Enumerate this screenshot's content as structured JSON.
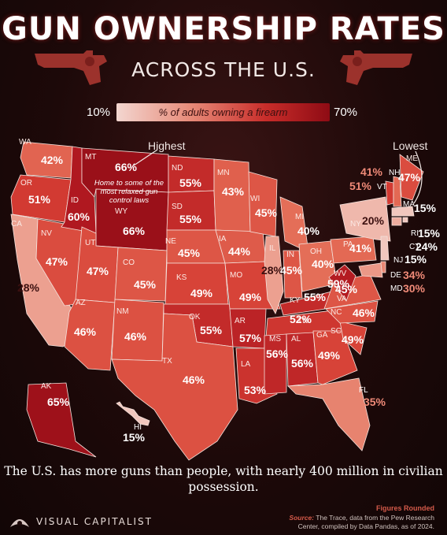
{
  "title": "GUN OWNERSHIP RATES",
  "subtitle": "ACROSS THE U.S.",
  "legend": {
    "min_label": "10%",
    "max_label": "70%",
    "label": "% of adults owning a firearm",
    "colors": [
      "#f3d6d0",
      "#e78a78",
      "#c82d2a",
      "#8e0b14"
    ]
  },
  "callouts": {
    "highest": "Highest",
    "lowest": "Lowest",
    "note": "Home to some of the most relaxed gun control laws"
  },
  "states": [
    {
      "abbr": "WA",
      "value": 42
    },
    {
      "abbr": "OR",
      "value": 51
    },
    {
      "abbr": "CA",
      "value": 28
    },
    {
      "abbr": "NV",
      "value": 47
    },
    {
      "abbr": "ID",
      "value": 60
    },
    {
      "abbr": "MT",
      "value": 66
    },
    {
      "abbr": "WY",
      "value": 66
    },
    {
      "abbr": "UT",
      "value": 47
    },
    {
      "abbr": "AZ",
      "value": 46
    },
    {
      "abbr": "CO",
      "value": 45
    },
    {
      "abbr": "NM",
      "value": 46
    },
    {
      "abbr": "ND",
      "value": 55
    },
    {
      "abbr": "SD",
      "value": 55
    },
    {
      "abbr": "NE",
      "value": 45
    },
    {
      "abbr": "KS",
      "value": 49
    },
    {
      "abbr": "OK",
      "value": 55
    },
    {
      "abbr": "TX",
      "value": 46
    },
    {
      "abbr": "MN",
      "value": 43
    },
    {
      "abbr": "IA",
      "value": 44
    },
    {
      "abbr": "MO",
      "value": 49
    },
    {
      "abbr": "AR",
      "value": 57
    },
    {
      "abbr": "LA",
      "value": 53
    },
    {
      "abbr": "WI",
      "value": 45
    },
    {
      "abbr": "IL",
      "value": 28
    },
    {
      "abbr": "MI",
      "value": 40
    },
    {
      "abbr": "IN",
      "value": 45
    },
    {
      "abbr": "OH",
      "value": 40
    },
    {
      "abbr": "KY",
      "value": 55
    },
    {
      "abbr": "TN",
      "value": 52
    },
    {
      "abbr": "MS",
      "value": 56
    },
    {
      "abbr": "AL",
      "value": 56
    },
    {
      "abbr": "GA",
      "value": 49
    },
    {
      "abbr": "FL",
      "value": 35
    },
    {
      "abbr": "SC",
      "value": 49
    },
    {
      "abbr": "NC",
      "value": 46
    },
    {
      "abbr": "VA",
      "value": 45
    },
    {
      "abbr": "WV",
      "value": 59
    },
    {
      "abbr": "PA",
      "value": 41
    },
    {
      "abbr": "NY",
      "value": 20
    },
    {
      "abbr": "VT",
      "value": 51
    },
    {
      "abbr": "NH",
      "value": 41
    },
    {
      "abbr": "ME",
      "value": 47
    },
    {
      "abbr": "MA",
      "value": 15
    },
    {
      "abbr": "RI",
      "value": 15
    },
    {
      "abbr": "CT",
      "value": 24
    },
    {
      "abbr": "NJ",
      "value": 15
    },
    {
      "abbr": "DE",
      "value": 34
    },
    {
      "abbr": "MD",
      "value": 30
    },
    {
      "abbr": "AK",
      "value": 65
    },
    {
      "abbr": "HI",
      "value": 15
    }
  ],
  "caption": "The U.S. has more guns than people, with nearly 400 million in civilian possession.",
  "footer": {
    "brand": "VISUAL CAPITALIST",
    "figures_note": "Figures Rounded",
    "source_label": "Source:",
    "source_text": "The Trace, data from the Pew Research Center, compiled by Data Pandas, as of 2024."
  }
}
